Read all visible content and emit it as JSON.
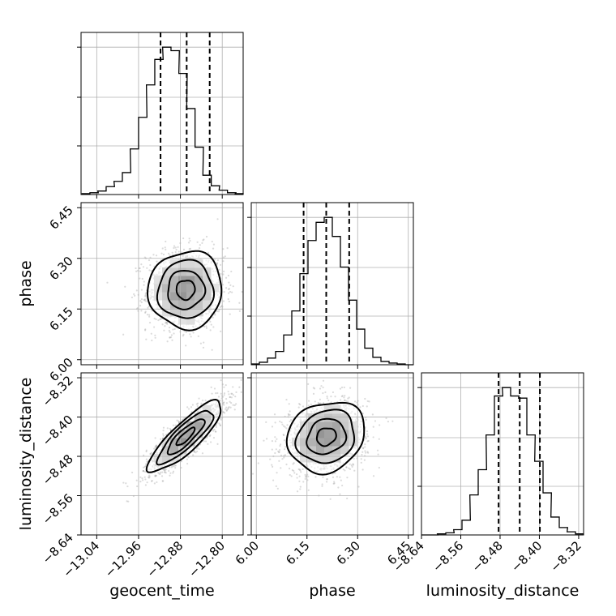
{
  "chart_data": {
    "type": "corner",
    "parameters": [
      {
        "name": "geocent_time",
        "label": "geocent_time",
        "ticks": [
          -13.04,
          -12.96,
          -12.88,
          -12.8
        ],
        "tick_labels": [
          "−13.04",
          "−12.96",
          "−12.88",
          "−12.80"
        ],
        "range": [
          -13.07,
          -12.76
        ],
        "quantiles": [
          -12.918,
          -12.868,
          -12.824
        ],
        "hist_centers": [
          -13.061,
          -13.045,
          -13.03,
          -13.014,
          -12.999,
          -12.983,
          -12.968,
          -12.952,
          -12.937,
          -12.921,
          -12.906,
          -12.89,
          -12.875,
          -12.86,
          -12.844,
          -12.829,
          -12.813,
          -12.798,
          -12.782,
          -12.767
        ],
        "hist_values": [
          1,
          2,
          4,
          9,
          15,
          25,
          52,
          88,
          125,
          154,
          168,
          164,
          138,
          98,
          54,
          22,
          10,
          5,
          2,
          1
        ]
      },
      {
        "name": "phase",
        "label": "phase",
        "ticks": [
          6.0,
          6.15,
          6.3,
          6.45
        ],
        "tick_labels": [
          "6.00",
          "6.15",
          "6.30",
          "6.45"
        ],
        "range": [
          5.985,
          6.465
        ],
        "quantiles": [
          6.14,
          6.207,
          6.275
        ],
        "hist_centers": [
          5.997,
          6.021,
          6.045,
          6.069,
          6.093,
          6.117,
          6.141,
          6.165,
          6.189,
          6.213,
          6.237,
          6.261,
          6.285,
          6.309,
          6.333,
          6.357,
          6.381,
          6.405,
          6.429,
          6.453
        ],
        "hist_values": [
          1,
          3,
          8,
          16,
          36,
          65,
          110,
          150,
          172,
          178,
          155,
          118,
          78,
          43,
          20,
          9,
          4,
          2,
          1,
          0
        ]
      },
      {
        "name": "luminosity_distance",
        "label": "luminosity_distance",
        "ticks": [
          -8.64,
          -8.56,
          -8.48,
          -8.4,
          -8.32
        ],
        "tick_labels": [
          "−8.64",
          "−8.56",
          "−8.48",
          "−8.40",
          "−8.32"
        ],
        "range": [
          -8.64,
          -8.31
        ],
        "quantiles": [
          -8.483,
          -8.44,
          -8.399
        ],
        "hist_centers": [
          -8.632,
          -8.615,
          -8.599,
          -8.582,
          -8.566,
          -8.549,
          -8.533,
          -8.516,
          -8.5,
          -8.483,
          -8.467,
          -8.45,
          -8.434,
          -8.417,
          -8.401,
          -8.384,
          -8.368,
          -8.351,
          -8.335,
          -8.318
        ],
        "hist_values": [
          0,
          0,
          1,
          2,
          5,
          14,
          38,
          62,
          95,
          132,
          140,
          132,
          130,
          95,
          70,
          40,
          17,
          7,
          3,
          1
        ]
      }
    ],
    "pairs": [
      {
        "x": 0,
        "y": 1,
        "mean": [
          -12.87,
          6.207
        ],
        "sigma": [
          0.0353,
          0.0573
        ],
        "rho": 0.03
      },
      {
        "x": 0,
        "y": 2,
        "mean": [
          -12.87,
          -8.44
        ],
        "sigma": [
          0.0353,
          0.036
        ],
        "rho": 0.85
      },
      {
        "x": 1,
        "y": 2,
        "mean": [
          6.207,
          -8.44
        ],
        "sigma": [
          0.0573,
          0.036
        ],
        "rho": 0.15
      }
    ],
    "contour_levels": [
      0.5,
      1.0,
      1.5,
      2.0
    ],
    "grid": true
  }
}
